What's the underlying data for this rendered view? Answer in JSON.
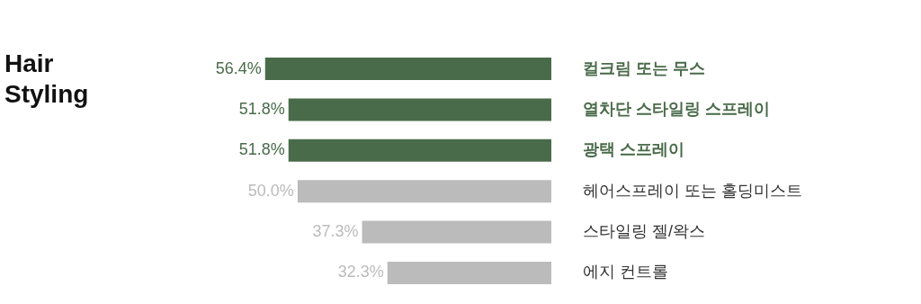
{
  "chart_data": {
    "type": "bar",
    "orientation": "horizontal",
    "title": "Hair Styling",
    "categories": [
      "컬크림 또는 무스",
      "열차단 스타일링 스프레이",
      "광택 스프레이",
      "헤어스프레이 또는 홀딩미스트",
      "스타일링 젤/왁스",
      "에지 컨트롤"
    ],
    "values": [
      56.4,
      51.8,
      51.8,
      50.0,
      37.3,
      32.3
    ],
    "value_labels": [
      "56.4%",
      "51.8%",
      "51.8%",
      "50.0%",
      "37.3%",
      "32.3%"
    ],
    "colors": [
      "#4a6b4a",
      "#4a6b4a",
      "#4a6b4a",
      "#bbbbbb",
      "#bbbbbb",
      "#bbbbbb"
    ]
  }
}
